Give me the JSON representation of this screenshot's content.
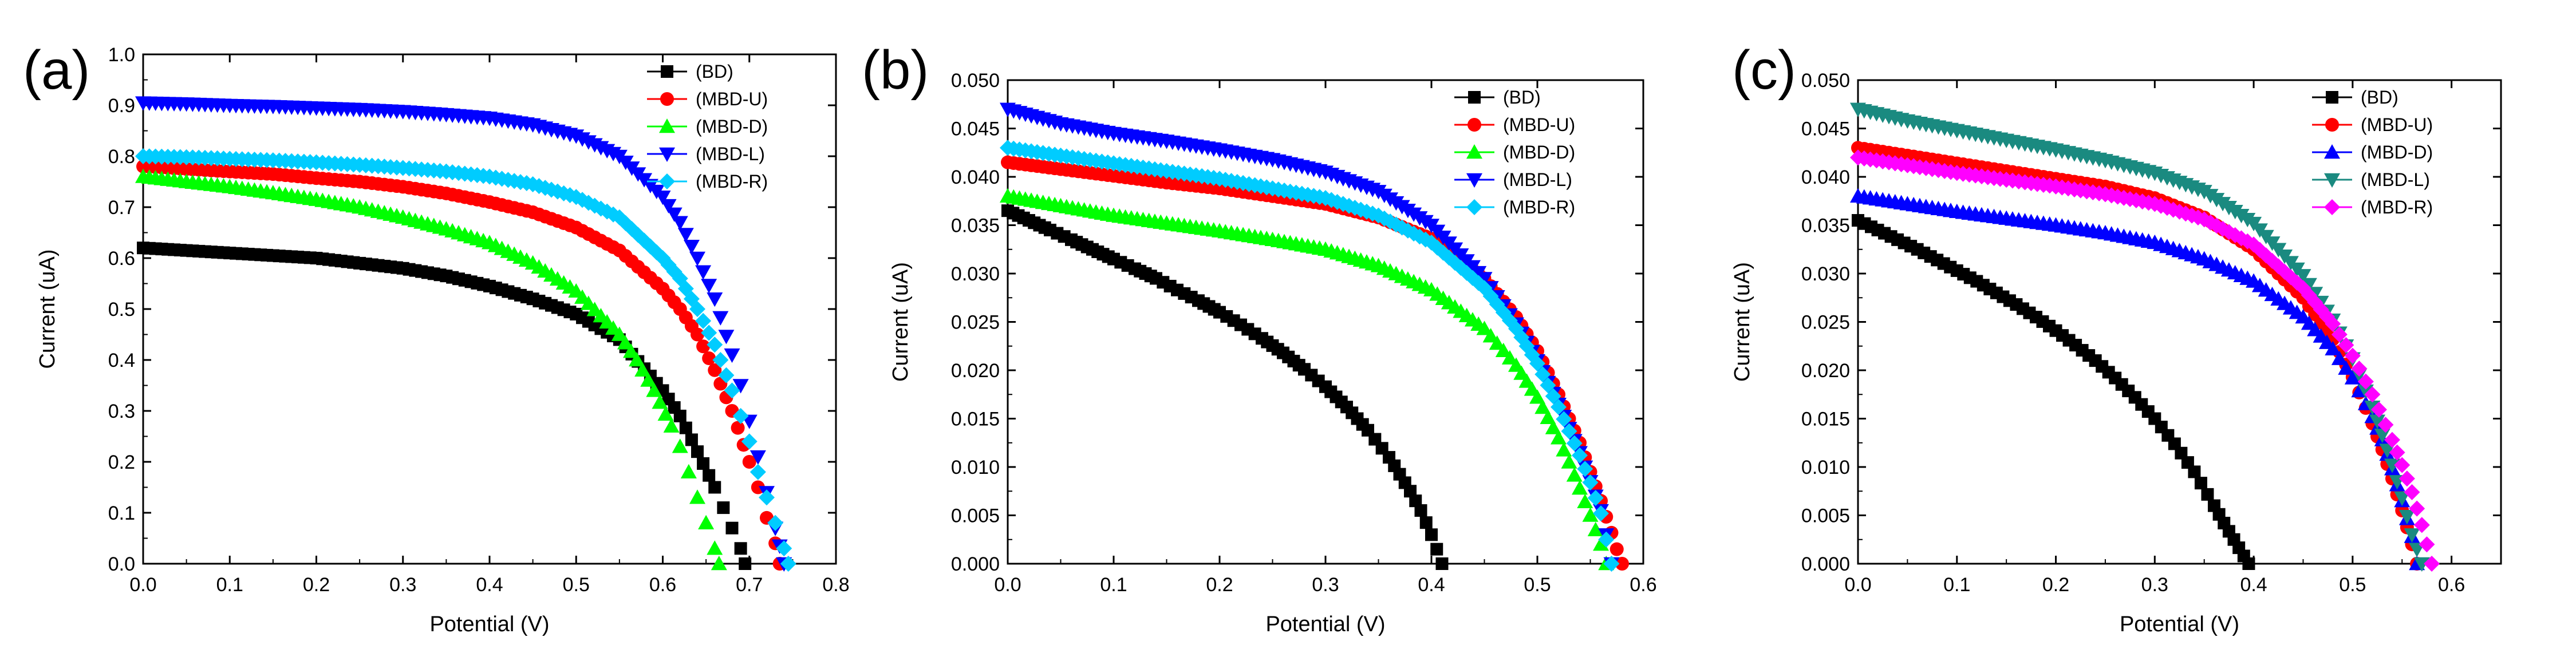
{
  "figure": {
    "panels": [
      "(a)",
      "(b)",
      "(c)"
    ]
  },
  "chart_data": [
    {
      "type": "scatter",
      "panel_label": "(a)",
      "xlabel": "Potential (V)",
      "ylabel": "Current (uA)",
      "xlim": [
        0,
        0.8
      ],
      "ylim": [
        0,
        1.0
      ],
      "xticks": [
        0.0,
        0.1,
        0.2,
        0.3,
        0.4,
        0.5,
        0.6,
        0.7,
        0.8
      ],
      "yticks": [
        0.0,
        0.1,
        0.2,
        0.3,
        0.4,
        0.5,
        0.6,
        0.7,
        0.8,
        0.9,
        1.0
      ],
      "xtick_labels": [
        "0.0",
        "0.1",
        "0.2",
        "0.3",
        "0.4",
        "0.5",
        "0.6",
        "0.7",
        "0.8"
      ],
      "ytick_labels": [
        "0.0",
        "0.1",
        "0.2",
        "0.3",
        "0.4",
        "0.5",
        "0.6",
        "0.7",
        "0.8",
        "0.9",
        "1.0"
      ],
      "legend_position": "top-right",
      "series": [
        {
          "name": "(BD)",
          "marker": "square",
          "color": "#000000",
          "x": [
            0.0,
            0.05,
            0.1,
            0.15,
            0.2,
            0.25,
            0.3,
            0.35,
            0.4,
            0.45,
            0.5,
            0.55,
            0.6,
            0.62,
            0.64,
            0.66,
            0.67,
            0.68,
            0.69,
            0.695
          ],
          "y": [
            0.62,
            0.615,
            0.61,
            0.605,
            0.6,
            0.59,
            0.58,
            0.565,
            0.545,
            0.52,
            0.49,
            0.44,
            0.34,
            0.29,
            0.22,
            0.15,
            0.11,
            0.07,
            0.03,
            0.0
          ]
        },
        {
          "name": "(MBD-U)",
          "marker": "circle",
          "color": "#ff0000",
          "x": [
            0.0,
            0.05,
            0.1,
            0.15,
            0.2,
            0.25,
            0.3,
            0.35,
            0.4,
            0.45,
            0.5,
            0.55,
            0.6,
            0.62,
            0.64,
            0.66,
            0.68,
            0.7,
            0.71,
            0.72,
            0.73,
            0.735
          ],
          "y": [
            0.78,
            0.775,
            0.77,
            0.765,
            0.757,
            0.75,
            0.74,
            0.727,
            0.71,
            0.69,
            0.66,
            0.615,
            0.54,
            0.5,
            0.45,
            0.38,
            0.3,
            0.2,
            0.15,
            0.09,
            0.04,
            0.0
          ]
        },
        {
          "name": "(MBD-D)",
          "marker": "triangle-up",
          "color": "#00ff00",
          "x": [
            0.0,
            0.05,
            0.1,
            0.15,
            0.2,
            0.25,
            0.3,
            0.35,
            0.4,
            0.45,
            0.5,
            0.55,
            0.57,
            0.59,
            0.61,
            0.62,
            0.63,
            0.64,
            0.65,
            0.66,
            0.665
          ],
          "y": [
            0.76,
            0.75,
            0.74,
            0.728,
            0.715,
            0.7,
            0.68,
            0.657,
            0.63,
            0.59,
            0.535,
            0.45,
            0.4,
            0.34,
            0.27,
            0.23,
            0.18,
            0.13,
            0.08,
            0.03,
            0.0
          ]
        },
        {
          "name": "(MBD-L)",
          "marker": "triangle-down",
          "color": "#0000ff",
          "x": [
            0.0,
            0.05,
            0.1,
            0.15,
            0.2,
            0.25,
            0.3,
            0.35,
            0.4,
            0.45,
            0.5,
            0.55,
            0.6,
            0.62,
            0.64,
            0.66,
            0.68,
            0.69,
            0.7,
            0.71,
            0.72,
            0.73,
            0.735,
            0.74
          ],
          "y": [
            0.905,
            0.903,
            0.9,
            0.898,
            0.895,
            0.892,
            0.888,
            0.882,
            0.875,
            0.862,
            0.84,
            0.8,
            0.72,
            0.67,
            0.6,
            0.52,
            0.41,
            0.35,
            0.28,
            0.21,
            0.14,
            0.07,
            0.035,
            0.0
          ]
        },
        {
          "name": "(MBD-R)",
          "marker": "diamond",
          "color": "#00ccff",
          "x": [
            0.0,
            0.05,
            0.1,
            0.15,
            0.2,
            0.25,
            0.3,
            0.35,
            0.4,
            0.45,
            0.5,
            0.55,
            0.6,
            0.62,
            0.64,
            0.66,
            0.68,
            0.69,
            0.7,
            0.71,
            0.72,
            0.73,
            0.74,
            0.745
          ],
          "y": [
            0.8,
            0.798,
            0.795,
            0.792,
            0.788,
            0.783,
            0.777,
            0.77,
            0.76,
            0.745,
            0.72,
            0.68,
            0.6,
            0.56,
            0.5,
            0.43,
            0.34,
            0.29,
            0.24,
            0.18,
            0.13,
            0.08,
            0.03,
            0.0
          ]
        }
      ]
    },
    {
      "type": "scatter",
      "panel_label": "(b)",
      "xlabel": "Potential (V)",
      "ylabel": "Current (uA)",
      "xlim": [
        0,
        0.6
      ],
      "ylim": [
        0,
        0.05
      ],
      "xticks": [
        0.0,
        0.1,
        0.2,
        0.3,
        0.4,
        0.5,
        0.6
      ],
      "yticks": [
        0.0,
        0.005,
        0.01,
        0.015,
        0.02,
        0.025,
        0.03,
        0.035,
        0.04,
        0.045,
        0.05
      ],
      "xtick_labels": [
        "0.0",
        "0.1",
        "0.2",
        "0.3",
        "0.4",
        "0.5",
        "0.6"
      ],
      "ytick_labels": [
        "0.000",
        "0.005",
        "0.010",
        "0.015",
        "0.020",
        "0.025",
        "0.030",
        "0.035",
        "0.040",
        "0.045",
        "0.050"
      ],
      "legend_position": "top-right",
      "series": [
        {
          "name": "(BD)",
          "marker": "square",
          "color": "#000000",
          "x": [
            0.0,
            0.02,
            0.04,
            0.06,
            0.08,
            0.1,
            0.12,
            0.14,
            0.16,
            0.18,
            0.2,
            0.22,
            0.24,
            0.26,
            0.28,
            0.3,
            0.32,
            0.34,
            0.36,
            0.38,
            0.39,
            0.4,
            0.405,
            0.41
          ],
          "y": [
            0.0365,
            0.0355,
            0.0345,
            0.0335,
            0.0325,
            0.0315,
            0.0305,
            0.0295,
            0.0283,
            0.0272,
            0.026,
            0.0247,
            0.0233,
            0.0218,
            0.0201,
            0.0183,
            0.0162,
            0.0138,
            0.011,
            0.0075,
            0.0055,
            0.003,
            0.0015,
            0.0
          ]
        },
        {
          "name": "(MBD-U)",
          "marker": "circle",
          "color": "#ff0000",
          "x": [
            0.0,
            0.05,
            0.1,
            0.15,
            0.2,
            0.25,
            0.3,
            0.35,
            0.4,
            0.45,
            0.48,
            0.5,
            0.52,
            0.54,
            0.55,
            0.56,
            0.57,
            0.575,
            0.58
          ],
          "y": [
            0.0415,
            0.0408,
            0.0401,
            0.0394,
            0.0388,
            0.038,
            0.0372,
            0.0358,
            0.0336,
            0.0295,
            0.0255,
            0.022,
            0.0175,
            0.0125,
            0.0095,
            0.0065,
            0.0032,
            0.0015,
            0.0
          ]
        },
        {
          "name": "(MBD-D)",
          "marker": "triangle-up",
          "color": "#00ff00",
          "x": [
            0.0,
            0.05,
            0.1,
            0.15,
            0.2,
            0.25,
            0.3,
            0.35,
            0.4,
            0.45,
            0.48,
            0.5,
            0.52,
            0.53,
            0.54,
            0.55,
            0.56,
            0.565
          ],
          "y": [
            0.038,
            0.037,
            0.036,
            0.0352,
            0.0344,
            0.0335,
            0.0325,
            0.0308,
            0.0283,
            0.0243,
            0.0205,
            0.0172,
            0.013,
            0.0105,
            0.0078,
            0.005,
            0.002,
            0.0
          ]
        },
        {
          "name": "(MBD-L)",
          "marker": "triangle-down",
          "color": "#0000ff",
          "x": [
            0.0,
            0.05,
            0.1,
            0.15,
            0.2,
            0.25,
            0.3,
            0.35,
            0.4,
            0.45,
            0.48,
            0.5,
            0.52,
            0.54,
            0.55,
            0.56,
            0.565,
            0.57
          ],
          "y": [
            0.047,
            0.0455,
            0.0445,
            0.0437,
            0.0428,
            0.0418,
            0.0405,
            0.0385,
            0.035,
            0.0295,
            0.0248,
            0.021,
            0.0165,
            0.0115,
            0.0085,
            0.0055,
            0.003,
            0.0
          ]
        },
        {
          "name": "(MBD-R)",
          "marker": "diamond",
          "color": "#00ccff",
          "x": [
            0.0,
            0.05,
            0.1,
            0.15,
            0.2,
            0.25,
            0.3,
            0.35,
            0.4,
            0.45,
            0.48,
            0.5,
            0.52,
            0.54,
            0.55,
            0.56,
            0.565,
            0.57
          ],
          "y": [
            0.043,
            0.0422,
            0.0414,
            0.0406,
            0.0398,
            0.0388,
            0.0378,
            0.036,
            0.0332,
            0.0285,
            0.0243,
            0.0207,
            0.0162,
            0.0112,
            0.0084,
            0.0052,
            0.0025,
            0.0
          ]
        }
      ]
    },
    {
      "type": "scatter",
      "panel_label": "(c)",
      "xlabel": "Potential (V)",
      "ylabel": "Current (uA)",
      "xlim": [
        0,
        0.65
      ],
      "ylim": [
        0,
        0.05
      ],
      "xticks": [
        0.0,
        0.1,
        0.2,
        0.3,
        0.4,
        0.5,
        0.6
      ],
      "yticks": [
        0.0,
        0.005,
        0.01,
        0.015,
        0.02,
        0.025,
        0.03,
        0.035,
        0.04,
        0.045,
        0.05
      ],
      "xtick_labels": [
        "0.0",
        "0.1",
        "0.2",
        "0.3",
        "0.4",
        "0.5",
        "0.6"
      ],
      "ytick_labels": [
        "0.000",
        "0.005",
        "0.010",
        "0.015",
        "0.020",
        "0.025",
        "0.030",
        "0.035",
        "0.040",
        "0.045",
        "0.050"
      ],
      "legend_position": "top-right",
      "series": [
        {
          "name": "(BD)",
          "marker": "square",
          "color": "#000000",
          "x": [
            0.0,
            0.02,
            0.04,
            0.06,
            0.08,
            0.1,
            0.12,
            0.14,
            0.16,
            0.18,
            0.2,
            0.22,
            0.24,
            0.26,
            0.28,
            0.3,
            0.32,
            0.34,
            0.36,
            0.37,
            0.38,
            0.39,
            0.395
          ],
          "y": [
            0.0355,
            0.0345,
            0.0335,
            0.0325,
            0.0314,
            0.0303,
            0.0292,
            0.028,
            0.0268,
            0.0255,
            0.0241,
            0.0226,
            0.021,
            0.0192,
            0.0172,
            0.015,
            0.0124,
            0.0095,
            0.006,
            0.0042,
            0.0025,
            0.0008,
            0.0
          ]
        },
        {
          "name": "(MBD-U)",
          "marker": "circle",
          "color": "#ff0000",
          "x": [
            0.0,
            0.05,
            0.1,
            0.15,
            0.2,
            0.25,
            0.3,
            0.35,
            0.4,
            0.45,
            0.48,
            0.5,
            0.52,
            0.53,
            0.54,
            0.55,
            0.56,
            0.565
          ],
          "y": [
            0.043,
            0.0422,
            0.0414,
            0.0406,
            0.0398,
            0.039,
            0.0378,
            0.0358,
            0.0325,
            0.0275,
            0.0232,
            0.0193,
            0.0145,
            0.0118,
            0.0088,
            0.0055,
            0.002,
            0.0
          ]
        },
        {
          "name": "(MBD-D)",
          "marker": "triangle-up",
          "color": "#0000ff",
          "x": [
            0.0,
            0.05,
            0.1,
            0.15,
            0.2,
            0.25,
            0.3,
            0.35,
            0.4,
            0.45,
            0.48,
            0.5,
            0.52,
            0.53,
            0.54,
            0.55,
            0.56,
            0.565
          ],
          "y": [
            0.038,
            0.0372,
            0.0364,
            0.0357,
            0.035,
            0.0342,
            0.0332,
            0.0315,
            0.0292,
            0.0255,
            0.0222,
            0.0192,
            0.0152,
            0.0128,
            0.0098,
            0.0065,
            0.0028,
            0.0
          ]
        },
        {
          "name": "(MBD-L)",
          "marker": "triangle-down",
          "color": "#1a8a80",
          "x": [
            0.0,
            0.05,
            0.1,
            0.15,
            0.2,
            0.25,
            0.3,
            0.35,
            0.4,
            0.45,
            0.48,
            0.5,
            0.52,
            0.53,
            0.54,
            0.55,
            0.56,
            0.57
          ],
          "y": [
            0.047,
            0.0458,
            0.0448,
            0.0438,
            0.0428,
            0.0417,
            0.0404,
            0.0385,
            0.0352,
            0.0298,
            0.0252,
            0.0212,
            0.0162,
            0.0133,
            0.0102,
            0.0068,
            0.003,
            0.0
          ]
        },
        {
          "name": "(MBD-R)",
          "marker": "diamond",
          "color": "#ff00ff",
          "x": [
            0.0,
            0.05,
            0.1,
            0.15,
            0.2,
            0.25,
            0.3,
            0.35,
            0.4,
            0.45,
            0.48,
            0.5,
            0.52,
            0.54,
            0.55,
            0.56,
            0.57,
            0.575,
            0.58
          ],
          "y": [
            0.042,
            0.0412,
            0.0404,
            0.0397,
            0.039,
            0.0382,
            0.0372,
            0.0356,
            0.033,
            0.0285,
            0.0248,
            0.0215,
            0.0175,
            0.0128,
            0.0102,
            0.0074,
            0.004,
            0.002,
            0.0
          ]
        }
      ]
    }
  ]
}
